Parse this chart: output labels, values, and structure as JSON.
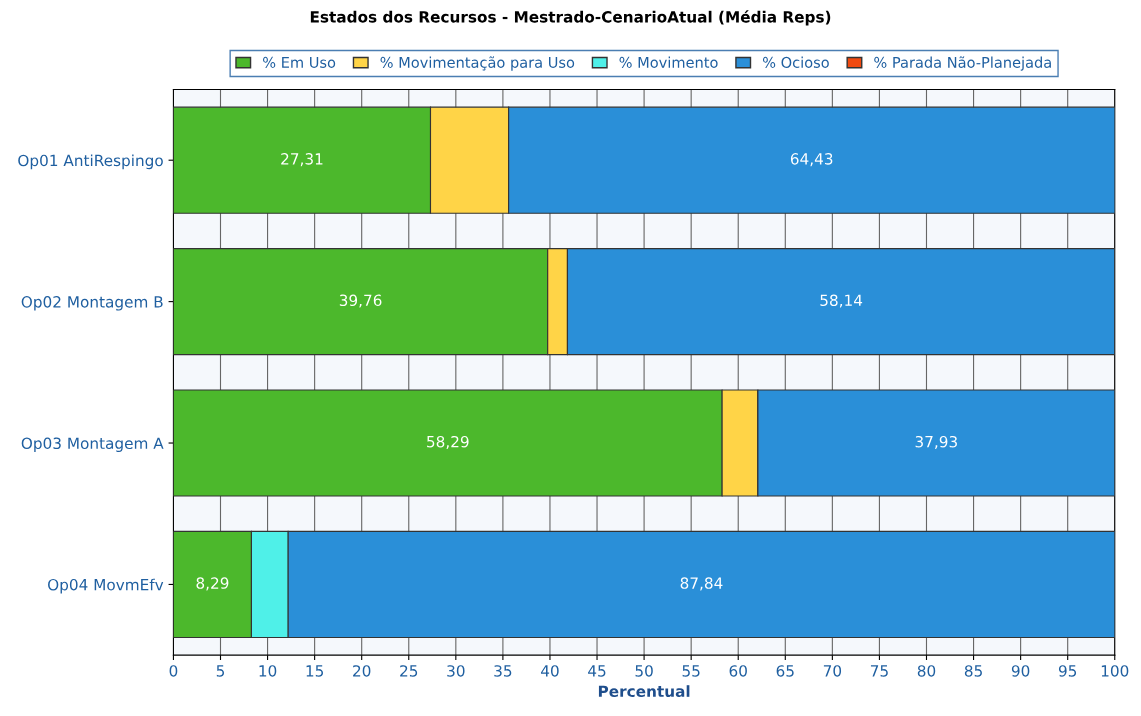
{
  "chart_data": {
    "type": "bar",
    "orientation": "horizontal",
    "stacked": true,
    "title": "Estados dos Recursos - Mestrado-CenarioAtual (Média Reps)",
    "xlabel": "Percentual",
    "categories": [
      "Op01 AntiRespingo",
      "Op02 Montagem B",
      "Op03 Montagem A",
      "Op04 MovmEfv"
    ],
    "series": [
      {
        "name": "% Em Uso",
        "color": "#4cb82c",
        "values": [
          27.31,
          39.76,
          58.29,
          8.29
        ],
        "value_labels": [
          "27,31",
          "39,76",
          "58,29",
          "8,29"
        ]
      },
      {
        "name": "% Movimentação para Uso",
        "color": "#ffd447",
        "values": [
          8.3,
          2.1,
          3.8,
          0
        ]
      },
      {
        "name": "% Movimento",
        "color": "#4ff0e8",
        "values": [
          0,
          0,
          0,
          3.9
        ]
      },
      {
        "name": "% Ocioso",
        "color": "#2a8fd8",
        "values": [
          64.43,
          58.14,
          37.93,
          87.84
        ],
        "value_labels": [
          "64,43",
          "58,14",
          "37,93",
          "87,84"
        ]
      },
      {
        "name": "% Parada Não-Planejada",
        "color": "#f04a10",
        "values": [
          0,
          0,
          0,
          0
        ]
      }
    ],
    "xlim": [
      0,
      100
    ],
    "xticks": [
      0,
      5,
      10,
      15,
      20,
      25,
      30,
      35,
      40,
      45,
      50,
      55,
      60,
      65,
      70,
      75,
      80,
      85,
      90,
      95,
      100
    ],
    "grid": "x",
    "legend": "top"
  }
}
